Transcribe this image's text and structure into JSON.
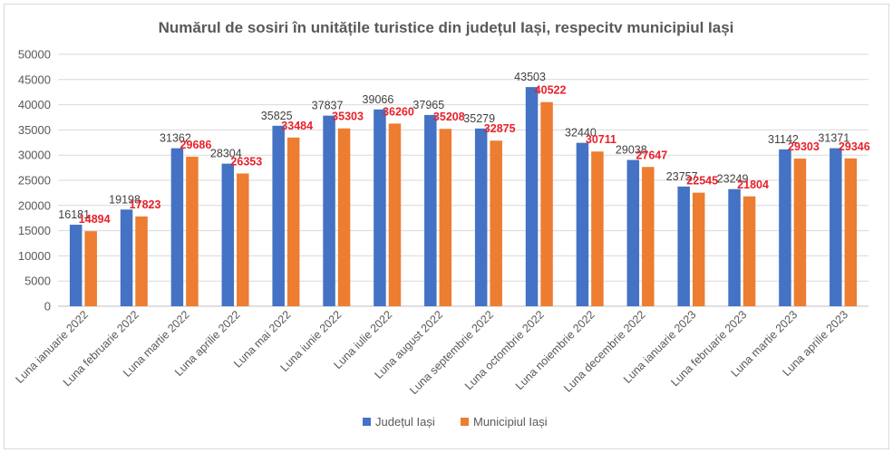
{
  "chart_data": {
    "type": "bar",
    "title": "Numărul de sosiri în unitățile turistice din județul Iași, respecitv municipiul Iași",
    "categories": [
      "Luna ianuarie 2022",
      "Luna februarie 2022",
      "Luna martie 2022",
      "Luna aprilie 2022",
      "Luna mai 2022",
      "Luna iunie 2022",
      "Luna iulie 2022",
      "Luna august 2022",
      "Luna septembrie 2022",
      "Luna octombrie 2022",
      "Luna noiembrie 2022",
      "Luna decembrie 2022",
      "Luna ianuarie 2023",
      "Luna februarie 2023",
      "Luna martie 2023",
      "Luna aprilie 2023"
    ],
    "series": [
      {
        "name": "Județul Iași",
        "color": "#4472c4",
        "values": [
          16181,
          19198,
          31362,
          28304,
          35825,
          37837,
          39066,
          37965,
          35279,
          43503,
          32440,
          29038,
          23757,
          23249,
          31142,
          31371
        ]
      },
      {
        "name": "Municipiul Iași",
        "color": "#ed7d31",
        "values": [
          14894,
          17823,
          29686,
          26353,
          33484,
          35303,
          36260,
          35208,
          32875,
          40522,
          30711,
          27647,
          22545,
          21804,
          29303,
          29346
        ]
      }
    ],
    "yticks": [
      "0",
      "5000",
      "10000",
      "15000",
      "20000",
      "25000",
      "30000",
      "35000",
      "40000",
      "45000",
      "50000"
    ],
    "ylim": [
      0,
      50000
    ],
    "grid": true,
    "legend_position": "bottom",
    "label_colors": [
      "#404040",
      "#e8212b"
    ]
  }
}
